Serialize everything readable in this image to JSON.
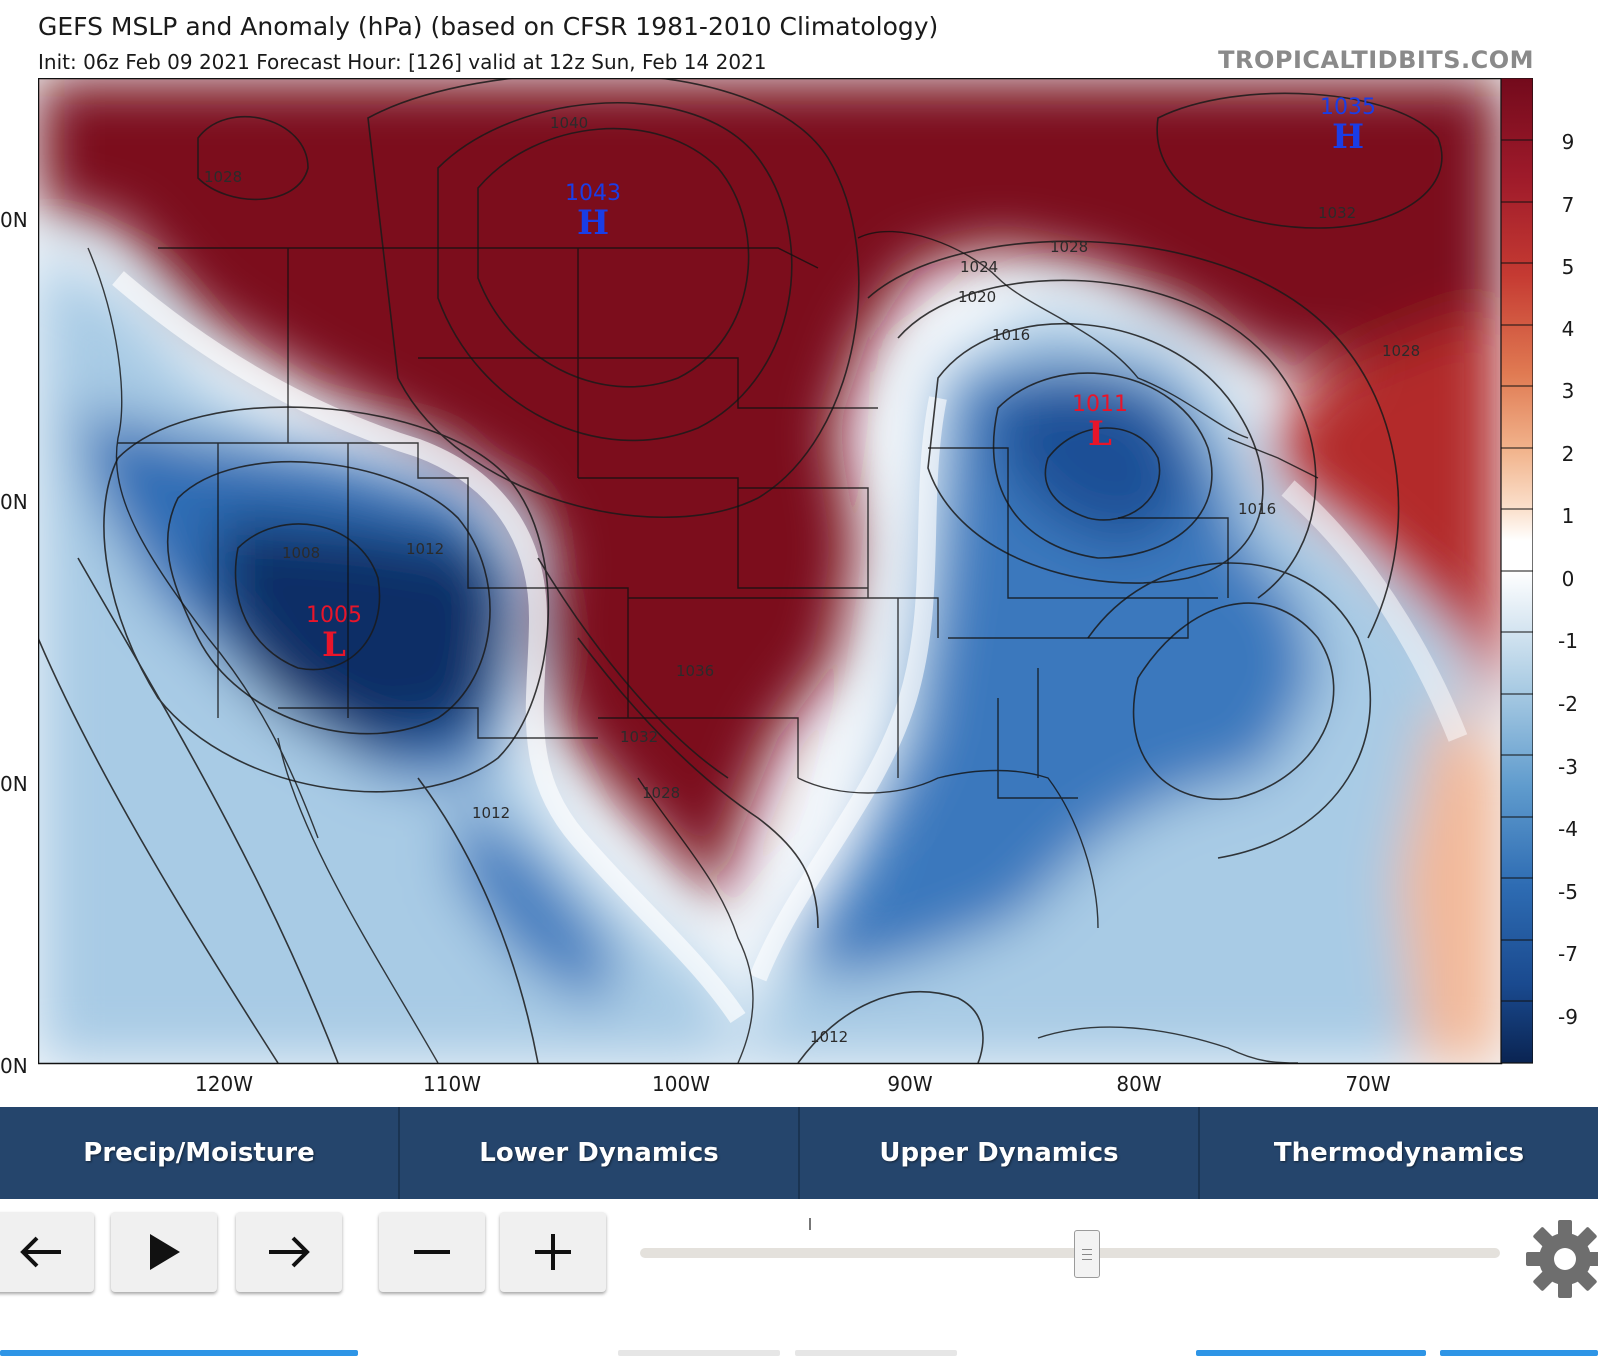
{
  "header": {
    "title": "GEFS MSLP and Anomaly (hPa) (based on CFSR 1981-2010 Climatology)",
    "subtitle": "Init: 06z Feb 09 2021   Forecast Hour: [126]   valid at 12z Sun, Feb 14 2021",
    "brand": "TROPICALTIDBITS.COM"
  },
  "map": {
    "lat_labels": [
      "0N",
      "0N",
      "0N",
      "0N"
    ],
    "lon_labels": [
      "120W",
      "110W",
      "100W",
      "90W",
      "80W",
      "70W"
    ],
    "isobars": [
      "1040",
      "1028",
      "1032",
      "1028",
      "1024",
      "1020",
      "1016",
      "1008",
      "1012",
      "1036",
      "1032",
      "1028",
      "1012",
      "1012",
      "1016",
      "1028"
    ],
    "centers": [
      {
        "type": "H",
        "value": "1043",
        "color": "#1a3de6"
      },
      {
        "type": "H",
        "value": "1035",
        "color": "#1a3de6"
      },
      {
        "type": "L",
        "value": "1011",
        "color": "#e8152a"
      },
      {
        "type": "L",
        "value": "1005",
        "color": "#e8152a"
      }
    ],
    "colorbar_labels": [
      "9",
      "7",
      "5",
      "4",
      "3",
      "2",
      "1",
      "0",
      "-1",
      "-2",
      "-3",
      "-4",
      "-5",
      "-7",
      "-9"
    ]
  },
  "tabs": [
    {
      "label": "Precip/Moisture"
    },
    {
      "label": "Lower Dynamics"
    },
    {
      "label": "Upper Dynamics"
    },
    {
      "label": "Thermodynamics"
    }
  ],
  "controls": {
    "prev_icon": "arrow-left-icon",
    "play_icon": "play-icon",
    "next_icon": "arrow-right-icon",
    "zoom_out_icon": "minus-icon",
    "zoom_in_icon": "plus-icon",
    "settings_icon": "gear-icon",
    "forecast_slider_fraction": 0.52
  },
  "colors": {
    "tab_bg": "#25456c",
    "high_label": "#1a3de6",
    "low_label": "#e8152a",
    "positive_anomaly": "#7b0a1f",
    "negative_anomaly": "#0c2a5c"
  }
}
